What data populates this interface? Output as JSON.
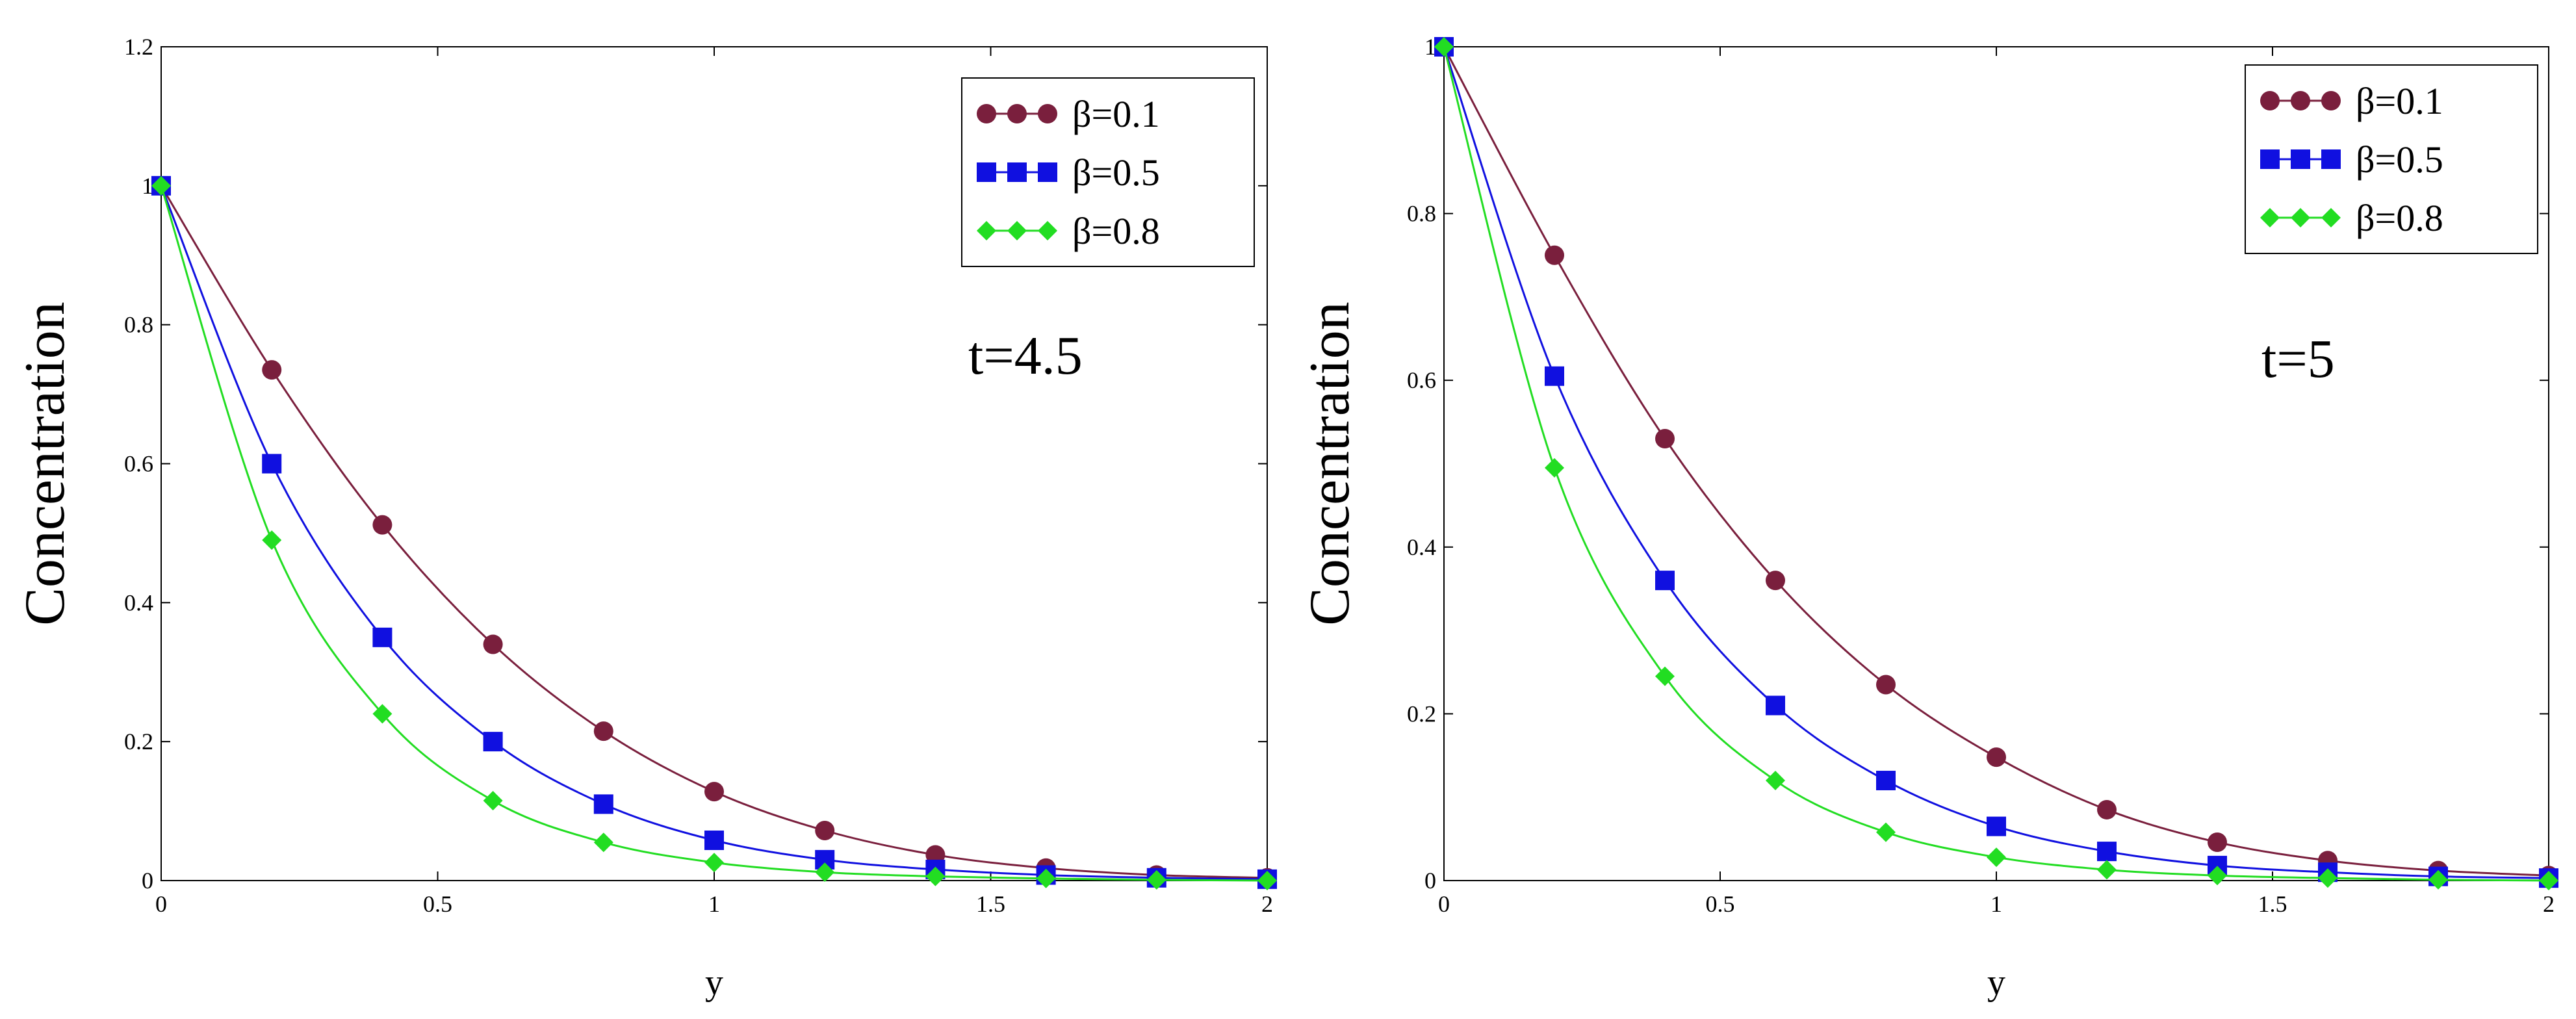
{
  "chart_data": [
    {
      "type": "line",
      "title": "",
      "annotation": "t=4.5",
      "xlabel": "y",
      "ylabel": "Concentration",
      "xlim": [
        0,
        2
      ],
      "ylim": [
        0,
        1.2
      ],
      "x_ticks": [
        0,
        0.5,
        1,
        1.5,
        2
      ],
      "x_tick_labels": [
        "0",
        "0.5",
        "1",
        "1.5",
        "2"
      ],
      "y_ticks": [
        0,
        0.2,
        0.4,
        0.6,
        0.8,
        1,
        1.2
      ],
      "y_tick_labels": [
        "0",
        "0.2",
        "0.4",
        "0.6",
        "0.8",
        "1",
        "1.2"
      ],
      "legend_position": "top-right",
      "grid": false,
      "x": [
        0,
        0.2,
        0.4,
        0.6,
        0.8,
        1.0,
        1.2,
        1.4,
        1.6,
        1.8,
        2.0
      ],
      "series": [
        {
          "name": "β=0.1",
          "color": "#7a1f3d",
          "marker": "circle",
          "values": [
            1.0,
            0.735,
            0.512,
            0.34,
            0.215,
            0.128,
            0.072,
            0.037,
            0.018,
            0.008,
            0.004
          ]
        },
        {
          "name": "β=0.5",
          "color": "#1010e0",
          "marker": "square",
          "values": [
            1.0,
            0.6,
            0.35,
            0.2,
            0.11,
            0.058,
            0.03,
            0.016,
            0.008,
            0.004,
            0.002
          ]
        },
        {
          "name": "β=0.8",
          "color": "#22dd22",
          "marker": "diamond",
          "values": [
            1.0,
            0.49,
            0.24,
            0.115,
            0.055,
            0.026,
            0.012,
            0.006,
            0.003,
            0.001,
            0.0
          ]
        }
      ]
    },
    {
      "type": "line",
      "title": "",
      "annotation": "t=5",
      "xlabel": "y",
      "ylabel": "Concentration",
      "xlim": [
        0,
        2
      ],
      "ylim": [
        0,
        1
      ],
      "x_ticks": [
        0,
        0.5,
        1,
        1.5,
        2
      ],
      "x_tick_labels": [
        "0",
        "0.5",
        "1",
        "1.5",
        "2"
      ],
      "y_ticks": [
        0,
        0.2,
        0.4,
        0.6,
        0.8,
        1
      ],
      "y_tick_labels": [
        "0",
        "0.2",
        "0.4",
        "0.6",
        "0.8",
        "1"
      ],
      "legend_position": "top-right",
      "grid": false,
      "x": [
        0,
        0.2,
        0.4,
        0.6,
        0.8,
        1.0,
        1.2,
        1.4,
        1.6,
        1.8,
        2.0
      ],
      "series": [
        {
          "name": "β=0.1",
          "color": "#7a1f3d",
          "marker": "circle",
          "values": [
            1.0,
            0.75,
            0.53,
            0.36,
            0.235,
            0.148,
            0.085,
            0.046,
            0.024,
            0.012,
            0.006
          ]
        },
        {
          "name": "β=0.5",
          "color": "#1010e0",
          "marker": "square",
          "values": [
            1.0,
            0.605,
            0.36,
            0.21,
            0.12,
            0.065,
            0.035,
            0.018,
            0.01,
            0.005,
            0.003
          ]
        },
        {
          "name": "β=0.8",
          "color": "#22dd22",
          "marker": "diamond",
          "values": [
            1.0,
            0.495,
            0.245,
            0.12,
            0.058,
            0.028,
            0.013,
            0.006,
            0.003,
            0.001,
            0.0
          ]
        }
      ]
    }
  ]
}
